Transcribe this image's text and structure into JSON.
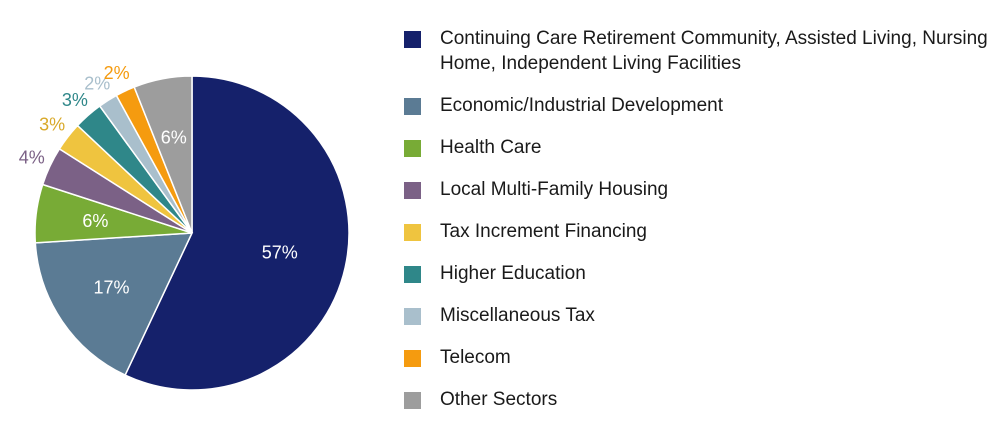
{
  "chart_data": {
    "type": "pie",
    "title": "",
    "slices": [
      {
        "label": "Continuing Care Retirement Community, Assisted Living, Nursing Home, Independent Living Facilities",
        "value": 57,
        "value_label": "57%",
        "color": "#15216b"
      },
      {
        "label": "Economic/Industrial Development",
        "value": 17,
        "value_label": "17%",
        "color": "#5b7b94"
      },
      {
        "label": "Health Care",
        "value": 6,
        "value_label": "6%",
        "color": "#78ab36"
      },
      {
        "label": "Local Multi-Family Housing",
        "value": 4,
        "value_label": "4%",
        "color": "#7b6186"
      },
      {
        "label": "Tax Increment Financing",
        "value": 3,
        "value_label": "3%",
        "color": "#efc43f"
      },
      {
        "label": "Higher Education",
        "value": 3,
        "value_label": "3%",
        "color": "#2f8789"
      },
      {
        "label": "Miscellaneous Tax",
        "value": 2,
        "value_label": "2%",
        "color": "#a9bfcc"
      },
      {
        "label": "Telecom",
        "value": 2,
        "value_label": "2%",
        "color": "#f59b0f"
      },
      {
        "label": "Other Sectors",
        "value": 6,
        "value_label": "6%",
        "color": "#9d9d9d"
      }
    ],
    "legend_position": "right",
    "start_angle_deg": 0,
    "direction": "clockwise"
  }
}
